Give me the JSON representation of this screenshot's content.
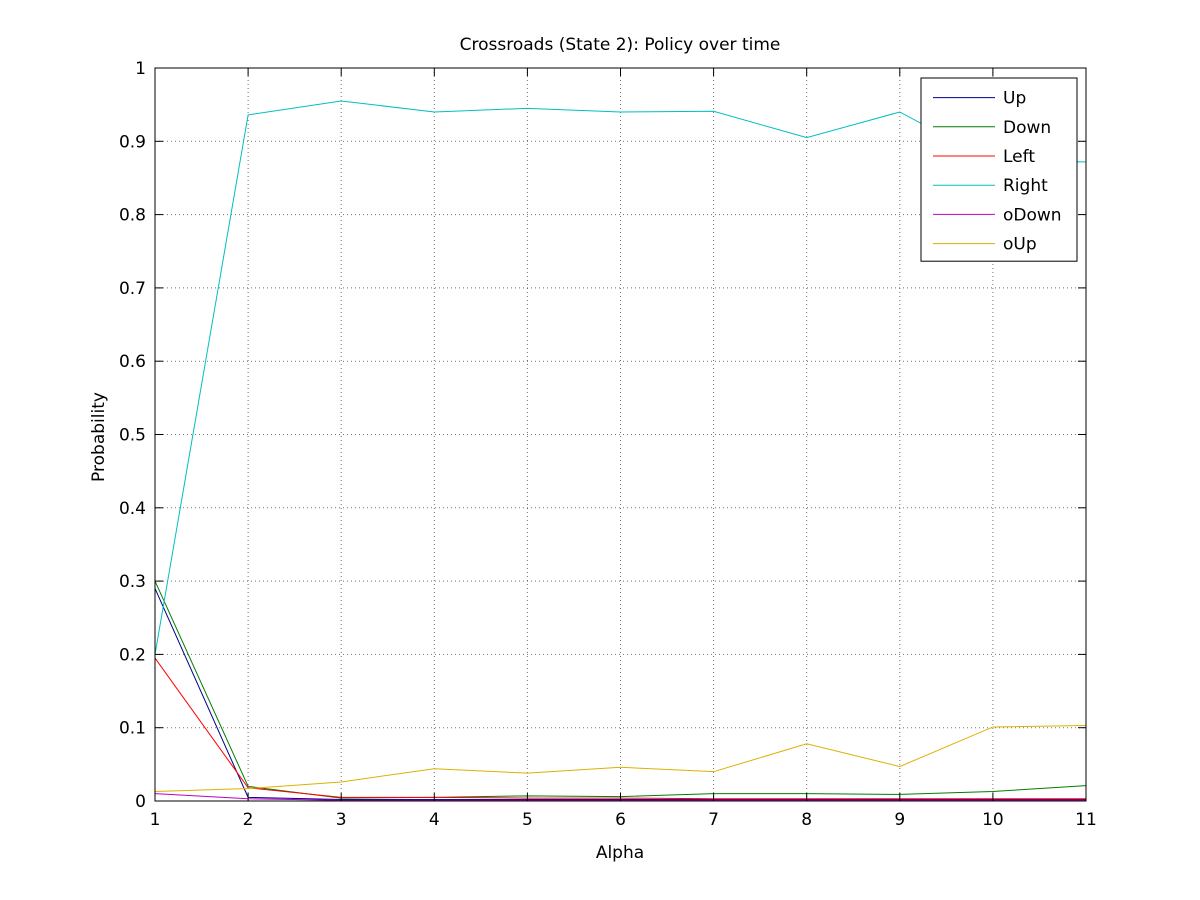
{
  "chart_data": {
    "type": "line",
    "title": "Crossroads (State 2): Policy over time",
    "xlabel": "Alpha",
    "ylabel": "Probability",
    "x": [
      1,
      2,
      3,
      4,
      5,
      6,
      7,
      8,
      9,
      10,
      11
    ],
    "xlim": [
      1,
      11
    ],
    "ylim": [
      0,
      1
    ],
    "xticks": [
      "1",
      "2",
      "3",
      "4",
      "5",
      "6",
      "7",
      "8",
      "9",
      "10",
      "11"
    ],
    "yticks": [
      "0",
      "0.1",
      "0.2",
      "0.3",
      "0.4",
      "0.5",
      "0.6",
      "0.7",
      "0.8",
      "0.9",
      "1"
    ],
    "grid": true,
    "legend_position": "top-right",
    "series": [
      {
        "name": "Up",
        "color": "#00008b",
        "values": [
          0.29,
          0.005,
          0.002,
          0.002,
          0.002,
          0.002,
          0.002,
          0.002,
          0.002,
          0.002,
          0.002
        ]
      },
      {
        "name": "Down",
        "color": "#007f00",
        "values": [
          0.3,
          0.02,
          0.004,
          0.005,
          0.007,
          0.006,
          0.01,
          0.01,
          0.009,
          0.013,
          0.021
        ]
      },
      {
        "name": "Left",
        "color": "#ff0000",
        "values": [
          0.195,
          0.018,
          0.005,
          0.005,
          0.004,
          0.004,
          0.003,
          0.003,
          0.003,
          0.003,
          0.003
        ]
      },
      {
        "name": "Right",
        "color": "#00bfbf",
        "values": [
          0.2,
          0.936,
          0.955,
          0.94,
          0.945,
          0.94,
          0.941,
          0.905,
          0.94,
          0.872,
          0.872
        ]
      },
      {
        "name": "oDown",
        "color": "#bf00bf",
        "values": [
          0.01,
          0.003,
          0.001,
          0.001,
          0.001,
          0.001,
          0.001,
          0.001,
          0.001,
          0.001,
          0.001
        ]
      },
      {
        "name": "oUp",
        "color": "#dfb000",
        "values": [
          0.013,
          0.017,
          0.026,
          0.044,
          0.038,
          0.046,
          0.04,
          0.078,
          0.047,
          0.101,
          0.103
        ]
      }
    ]
  }
}
